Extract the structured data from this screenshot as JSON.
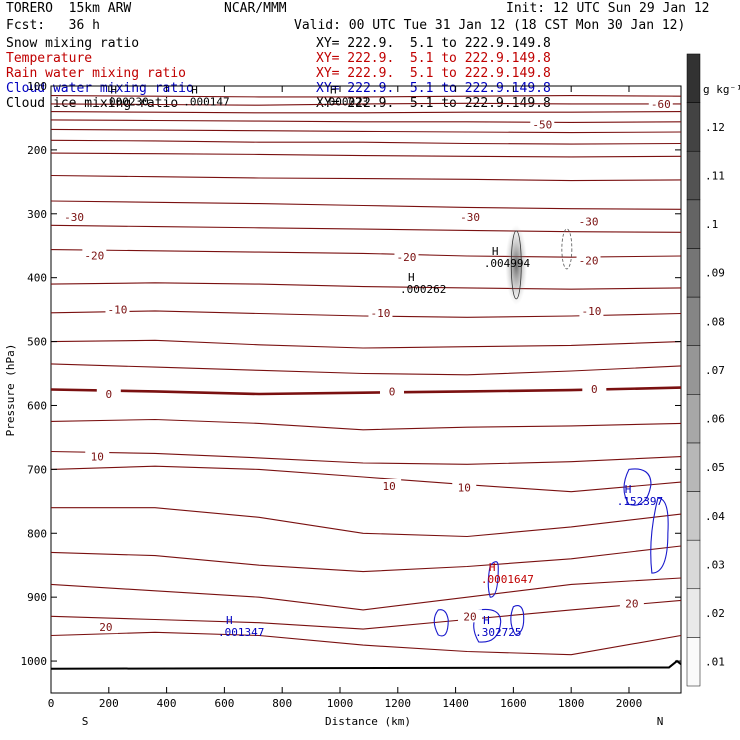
{
  "header": {
    "model": "TORERO  15km ARW",
    "center": "NCAR/MMM",
    "init": "Init: 12 UTC Sun 29 Jan 12",
    "fcst": "Fcst:   36 h",
    "valid": "Valid: 00 UTC Tue 31 Jan 12 (18 CST Mon 30 Jan 12)",
    "fields": [
      {
        "name": "Snow mixing ratio",
        "xy": "XY= 222.9.  5.1 to 222.9.149.8",
        "color": "#000000"
      },
      {
        "name": "Temperature",
        "xy": "XY= 222.9.  5.1 to 222.9.149.8",
        "color": "#c00000"
      },
      {
        "name": "Rain water mixing ratio",
        "xy": "XY= 222.9.  5.1 to 222.9.149.8",
        "color": "#c00000"
      },
      {
        "name": "Cloud water mixing ratio",
        "xy": "XY= 222.9.  5.1 to 222.9.149.8",
        "color": "#0000c0"
      },
      {
        "name": "Cloud ice mixing ratio",
        "xy": "XY= 222.9.  5.1 to 222.9.149.8",
        "color": "#000000"
      }
    ]
  },
  "chart_data": {
    "type": "cross-section contour",
    "xlabel": "Distance (km)",
    "ylabel": "Pressure (hPa)",
    "xlim": [
      0,
      2180
    ],
    "ylim": [
      1050,
      100
    ],
    "x_ticks": [
      "0",
      "200",
      "400",
      "600",
      "800",
      "1000",
      "1200",
      "1400",
      "1600",
      "1800",
      "2000"
    ],
    "y_ticks": [
      "100",
      "200",
      "300",
      "400",
      "500",
      "600",
      "700",
      "800",
      "900",
      "1000"
    ],
    "x_end_labels": {
      "left": "S",
      "right": "N"
    },
    "colorbar": {
      "unit": "g kg⁻¹",
      "ticks": [
        ".01",
        ".02",
        ".03",
        ".04",
        ".05",
        ".06",
        ".07",
        ".08",
        ".09",
        ".1",
        ".11",
        ".12"
      ]
    },
    "temperature_labels": [
      {
        "text": "-60",
        "x": 2110,
        "p": 128
      },
      {
        "text": "-50",
        "x": 1700,
        "p": 160
      },
      {
        "text": "-30",
        "x": 80,
        "p": 305
      },
      {
        "text": "-30",
        "x": 1450,
        "p": 305
      },
      {
        "text": "-30",
        "x": 1860,
        "p": 312
      },
      {
        "text": "-20",
        "x": 150,
        "p": 365
      },
      {
        "text": "-20",
        "x": 1230,
        "p": 368
      },
      {
        "text": "-20",
        "x": 1860,
        "p": 373
      },
      {
        "text": "-10",
        "x": 230,
        "p": 450
      },
      {
        "text": "-10",
        "x": 1140,
        "p": 455
      },
      {
        "text": "-10",
        "x": 1870,
        "p": 452
      },
      {
        "text": "0",
        "x": 200,
        "p": 582
      },
      {
        "text": "0",
        "x": 1180,
        "p": 578
      },
      {
        "text": "0",
        "x": 1880,
        "p": 574
      },
      {
        "text": "10",
        "x": 160,
        "p": 680
      },
      {
        "text": "10",
        "x": 1170,
        "p": 726
      },
      {
        "text": "10",
        "x": 1430,
        "p": 728
      },
      {
        "text": "20",
        "x": 190,
        "p": 947
      },
      {
        "text": "20",
        "x": 1450,
        "p": 930
      },
      {
        "text": "20",
        "x": 2010,
        "p": 910
      }
    ],
    "extrema": [
      {
        "mark": "H",
        "value": ".000230",
        "x": 240,
        "p": 115,
        "color": "#000000"
      },
      {
        "mark": "H",
        "value": ".000147",
        "x": 520,
        "p": 115,
        "color": "#000000"
      },
      {
        "mark": "H",
        "value": ".000023",
        "x": 1000,
        "p": 115,
        "color": "#000000"
      },
      {
        "mark": "H",
        "value": ".000262",
        "x": 1270,
        "p": 408,
        "color": "#000000"
      },
      {
        "mark": "H",
        "value": ".004994",
        "x": 1560,
        "p": 368,
        "color": "#000000"
      },
      {
        "mark": "H",
        "value": ".152397",
        "x": 2020,
        "p": 740,
        "color": "#0000c0"
      },
      {
        "mark": "H",
        "value": ".0001647",
        "x": 1550,
        "p": 862,
        "color": "#c00000"
      },
      {
        "mark": "H",
        "value": ".001347",
        "x": 640,
        "p": 945,
        "color": "#0000c0"
      },
      {
        "mark": "H",
        "value": ".302725",
        "x": 1530,
        "p": 945,
        "color": "#0000c0"
      }
    ]
  }
}
